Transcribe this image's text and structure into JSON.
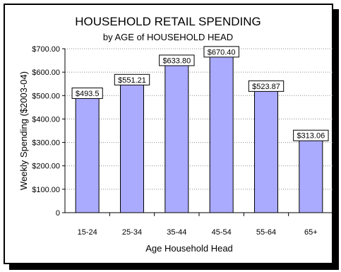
{
  "chart_data": {
    "type": "bar",
    "title": "HOUSEHOLD RETAIL SPENDING",
    "subtitle": "by AGE of HOUSEHOLD HEAD",
    "xlabel": "Age Household Head",
    "ylabel": "Weekly Spending ($2003-04)",
    "categories": [
      "15-24",
      "25-34",
      "35-44",
      "45-54",
      "55-64",
      "65+"
    ],
    "values": [
      493.5,
      551.21,
      633.8,
      670.4,
      523.87,
      313.06
    ],
    "data_labels": [
      "$493.5",
      "$551.21",
      "$633.80",
      "$670.40",
      "$523.87",
      "$313.06"
    ],
    "ylim": [
      0,
      700
    ],
    "yticks": [
      0,
      100,
      200,
      300,
      400,
      500,
      600,
      700
    ],
    "ytick_labels": [
      "0",
      "$100.00",
      "$200.00",
      "$300.00",
      "$400.00",
      "$500.00",
      "$600.00",
      "$700.00"
    ],
    "grid": true,
    "legend": "none",
    "colors": {
      "bar_fill": "#aaaaff",
      "bar_stroke": "#000000",
      "grid": "#888888"
    }
  }
}
